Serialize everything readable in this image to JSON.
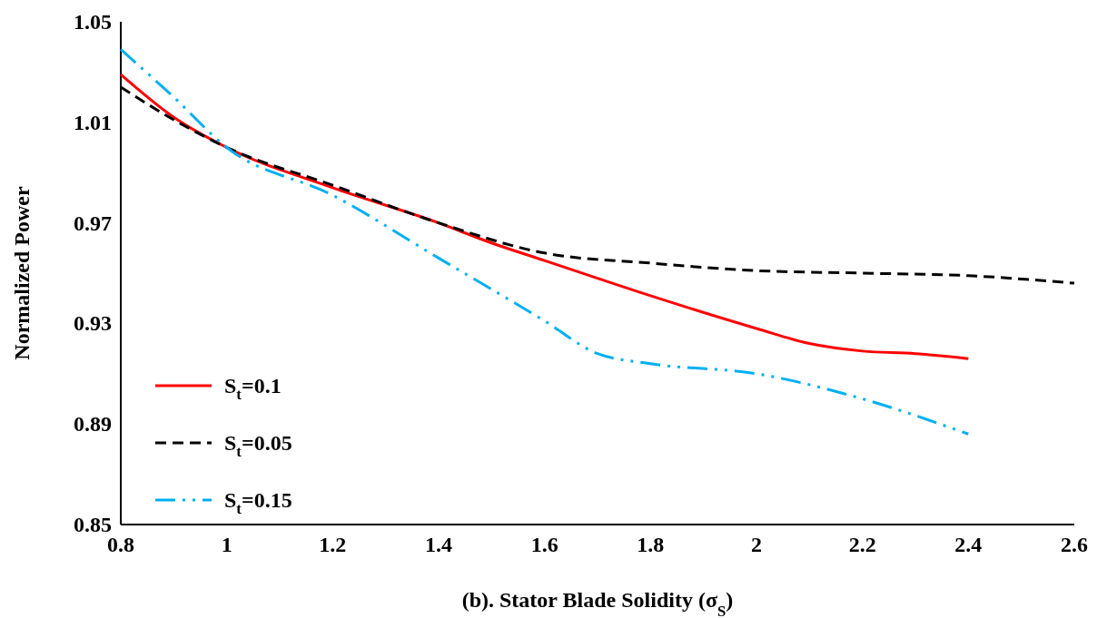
{
  "chart_data": {
    "type": "line",
    "xlabel": "(b). Stator Blade Solidity (σ$_{S}$)",
    "ylabel": "Normalized Power",
    "xlim": [
      0.8,
      2.6
    ],
    "xticks": [
      0.8,
      1,
      1.2,
      1.4,
      1.6,
      1.8,
      2,
      2.2,
      2.4,
      2.6
    ],
    "ylim": [
      0.85,
      1.05
    ],
    "yticks": [
      0.85,
      0.89,
      0.93,
      0.97,
      1.01,
      1.05
    ],
    "legend": "bottom left",
    "series": [
      {
        "name": "S$_{t}$=0.1",
        "color": "#ff0000",
        "line_style": "solid",
        "x": [
          0.8,
          0.9,
          1,
          1.2,
          1.4,
          1.5,
          1.6,
          1.8,
          2,
          2.1,
          2.2,
          2.3,
          2.4
        ],
        "values": [
          1.029,
          1.012,
          1.0,
          0.984,
          0.97,
          0.962,
          0.955,
          0.941,
          0.928,
          0.922,
          0.919,
          0.918,
          0.916
        ]
      },
      {
        "name": "S$_{t}$=0.05",
        "color": "#000000",
        "line_style": "dashed",
        "x": [
          0.8,
          0.9,
          1,
          1.2,
          1.4,
          1.6,
          1.8,
          2,
          2.2,
          2.4,
          2.6
        ],
        "values": [
          1.024,
          1.011,
          1.0,
          0.985,
          0.97,
          0.958,
          0.954,
          0.951,
          0.95,
          0.949,
          0.946
        ]
      },
      {
        "name": "S$_{t}$=0.15",
        "color": "#00b0f0",
        "line_style": "dashdot",
        "x": [
          0.8,
          0.9,
          1,
          1.2,
          1.4,
          1.6,
          1.7,
          1.8,
          2,
          2.2,
          2.4
        ],
        "values": [
          1.039,
          1.02,
          1.0,
          0.981,
          0.956,
          0.931,
          0.918,
          0.914,
          0.91,
          0.9,
          0.886
        ]
      }
    ]
  }
}
